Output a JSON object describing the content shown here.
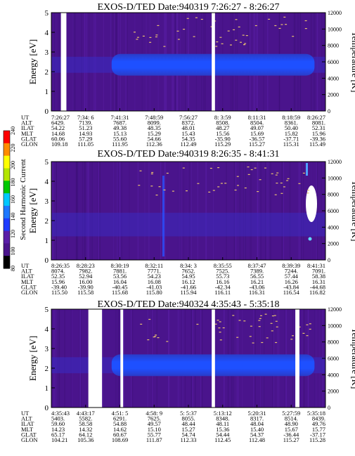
{
  "colors": {
    "background": "#4a148c",
    "band": "#1e50ff",
    "band_core": "#2a66ff",
    "gap": "#ffffff",
    "specks": "#e8c070"
  },
  "colorbar": {
    "label": "Second Harmonic Current",
    "ticks": [
      "80",
      "100",
      "120",
      "140",
      "160",
      "180",
      "200",
      "220",
      "240"
    ],
    "colors": [
      "#000000",
      "#4a148c",
      "#5a1ea8",
      "#1e3cff",
      "#1e78ff",
      "#00c8ff",
      "#00c800",
      "#b4e600",
      "#ffff00",
      "#ff8c00",
      "#ff0000"
    ]
  },
  "chart_data": [
    {
      "type": "heatmap",
      "title": "EXOS-D/TED   Date:940319  7:26:27 - 8:26:27",
      "ylabel": "Energy [eV]",
      "y2label": "Temperature [K]",
      "yticks": [
        "0",
        "1",
        "2",
        "3",
        "4",
        "5"
      ],
      "y2ticks": [
        "0",
        "2000",
        "4000",
        "6000",
        "8000",
        "10000",
        "12000"
      ],
      "ylim": [
        0,
        5
      ],
      "y2lim": [
        0,
        12000
      ],
      "band_energy_ev": [
        1.8,
        2.9
      ],
      "data_gaps_fraction": [
        [
          0.035,
          0.055
        ],
        [
          0.585,
          0.597
        ]
      ],
      "ephemeris_labels": [
        "UT",
        "ALT",
        "ILAT",
        "MLT",
        "GLAT",
        "GLON"
      ],
      "ephemeris": [
        [
          "7:26:27",
          "6429.",
          "54.22",
          "14.68",
          "60.06",
          "109.18"
        ],
        [
          "7:34:  6",
          "7139.",
          "51.23",
          "14.93",
          "57.29",
          "111.05"
        ],
        [
          "7:41:31",
          "7687.",
          "49.38",
          "15.13",
          "55.60",
          "111.95"
        ],
        [
          "7:48:59",
          "8099.",
          "48.35",
          "15.29",
          "54.66",
          "112.36"
        ],
        [
          "7:56:27",
          "8372.",
          "48.01",
          "15.43",
          "54.35",
          "112.49"
        ],
        [
          "8:  3:59",
          "8508.",
          "48.27",
          "15.56",
          "-35.90",
          "115.29"
        ],
        [
          "8:11:31",
          "8504.",
          "49.07",
          "15.69",
          "-36.57",
          "115.27"
        ],
        [
          "8:18:59",
          "8361.",
          "50.40",
          "15.82",
          "-37.71",
          "115.31"
        ],
        [
          "8:26:27",
          "8081.",
          "52.31",
          "15.96",
          "-39.36",
          "115.49"
        ]
      ]
    },
    {
      "type": "heatmap",
      "title": "EXOS-D/TED   Date:940319  8:26:35 - 8:41:31",
      "ylabel": "Energy [eV]",
      "y2label": "Temperature [K]",
      "yticks": [
        "0",
        "1",
        "2",
        "3",
        "4",
        "5"
      ],
      "y2ticks": [
        "0",
        "2000",
        "4000",
        "6000",
        "8000",
        "10000",
        "12000"
      ],
      "ylim": [
        0,
        5
      ],
      "y2lim": [
        0,
        12000
      ],
      "band_energy_ev": [
        1.2,
        2.4
      ],
      "data_gaps_fraction": [],
      "ephemeris_labels": [
        "UT",
        "ALT",
        "ILAT",
        "MLT",
        "GLAT",
        "GLON"
      ],
      "ephemeris": [
        [
          "8:26:35",
          "8074.",
          "52.35",
          "15.96",
          "-39.40",
          "115.50"
        ],
        [
          "8:28:23",
          "7982.",
          "52.94",
          "16.00",
          "-39.90",
          "115.58"
        ],
        [
          "8:30:19",
          "7881.",
          "53.56",
          "16.04",
          "-40.45",
          "115.68"
        ],
        [
          "8:32:11",
          "7771.",
          "54.23",
          "16.08",
          "-41.03",
          "115.80"
        ],
        [
          "8:34:  3",
          "7652.",
          "54.95",
          "16.12",
          "-41.66",
          "115.94"
        ],
        [
          "8:35:55",
          "7525.",
          "55.73",
          "16.16",
          "-42.34",
          "116.11"
        ],
        [
          "8:37:47",
          "7389.",
          "56.55",
          "16.21",
          "-43.06",
          "116.31"
        ],
        [
          "8:39:39",
          "7244.",
          "57.44",
          "16.26",
          "-43.84",
          "116.54"
        ],
        [
          "8:41:31",
          "7091.",
          "58.38",
          "16.31",
          "-44.68",
          "116.82"
        ]
      ]
    },
    {
      "type": "heatmap",
      "title": "EXOS-D/TED   Date:940324  4:35:43 - 5:35:18",
      "ylabel": "Energy [eV]",
      "y2label": "Temperature [K]",
      "yticks": [
        "0",
        "1",
        "2",
        "3",
        "4",
        "5"
      ],
      "y2ticks": [
        "0",
        "2000",
        "4000",
        "6000",
        "8000",
        "10000",
        "12000"
      ],
      "ylim": [
        0,
        5
      ],
      "y2lim": [
        0,
        12000
      ],
      "band_energy_ev": [
        1.6,
        2.7
      ],
      "data_gaps_fraction": [
        [
          0.135,
          0.185
        ],
        [
          0.252,
          0.262
        ],
        [
          0.585,
          0.597
        ],
        [
          0.89,
          0.905
        ]
      ],
      "ephemeris_labels": [
        "UT",
        "ALT",
        "ILAT",
        "MLT",
        "GLAT",
        "GLON"
      ],
      "ephemeris": [
        [
          "4:35:43",
          "5403.",
          "59.60",
          "14.23",
          "65.17",
          "104.21"
        ],
        [
          "4:43:17",
          "5582.",
          "58.58",
          "14.32",
          "64.12",
          "105.36"
        ],
        [
          "4:51:  5",
          "6291.",
          "54.88",
          "14.62",
          "60.67",
          "108.69"
        ],
        [
          "4:58:  9",
          "7625.",
          "49.57",
          "15.10",
          "55.77",
          "111.87"
        ],
        [
          "5:  5:37",
          "8055.",
          "48.44",
          "15.27",
          "54.74",
          "112.33"
        ],
        [
          "5:13:12",
          "8348.",
          "48.11",
          "15.36",
          "54.44",
          "112.45"
        ],
        [
          "5:20:31",
          "8317.",
          "48.04",
          "15.40",
          "54.37",
          "112.48"
        ],
        [
          "5:27:59",
          "8514.",
          "48.90",
          "15.67",
          "-36.44",
          "115.27"
        ],
        [
          "5:35:18",
          "8439.",
          "49.76",
          "15.77",
          "-37.17",
          "115.28"
        ]
      ]
    }
  ]
}
